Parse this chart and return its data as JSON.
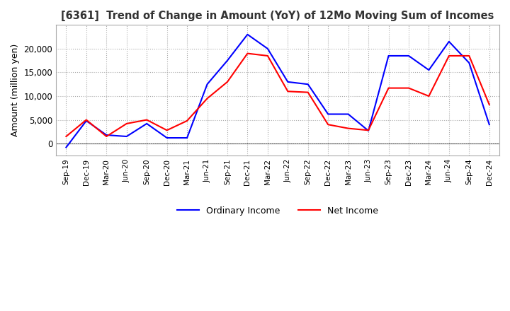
{
  "title": "[6361]  Trend of Change in Amount (YoY) of 12Mo Moving Sum of Incomes",
  "ylabel": "Amount (million yen)",
  "x_labels": [
    "Sep-19",
    "Dec-19",
    "Mar-20",
    "Jun-20",
    "Sep-20",
    "Dec-20",
    "Mar-21",
    "Jun-21",
    "Sep-21",
    "Dec-21",
    "Mar-22",
    "Jun-22",
    "Sep-22",
    "Dec-22",
    "Mar-23",
    "Jun-23",
    "Sep-23",
    "Dec-23",
    "Mar-24",
    "Jun-24",
    "Sep-24",
    "Dec-24"
  ],
  "ordinary_income": [
    -800,
    4800,
    1800,
    1500,
    4200,
    1200,
    1200,
    12500,
    17500,
    23000,
    20000,
    13000,
    12500,
    6200,
    6200,
    2700,
    18500,
    18500,
    15500,
    21500,
    17000,
    4000
  ],
  "net_income": [
    1500,
    5000,
    1500,
    4200,
    5000,
    2800,
    4800,
    9500,
    13000,
    19000,
    18500,
    11000,
    10800,
    4000,
    3200,
    2800,
    11700,
    11700,
    10000,
    18500,
    18500,
    8200
  ],
  "ordinary_color": "#0000ff",
  "net_color": "#ff0000",
  "ylim_min": -2500,
  "ylim_max": 25000,
  "yticks": [
    0,
    5000,
    10000,
    15000,
    20000
  ],
  "background_color": "#ffffff",
  "grid_color": "#aaaaaa"
}
